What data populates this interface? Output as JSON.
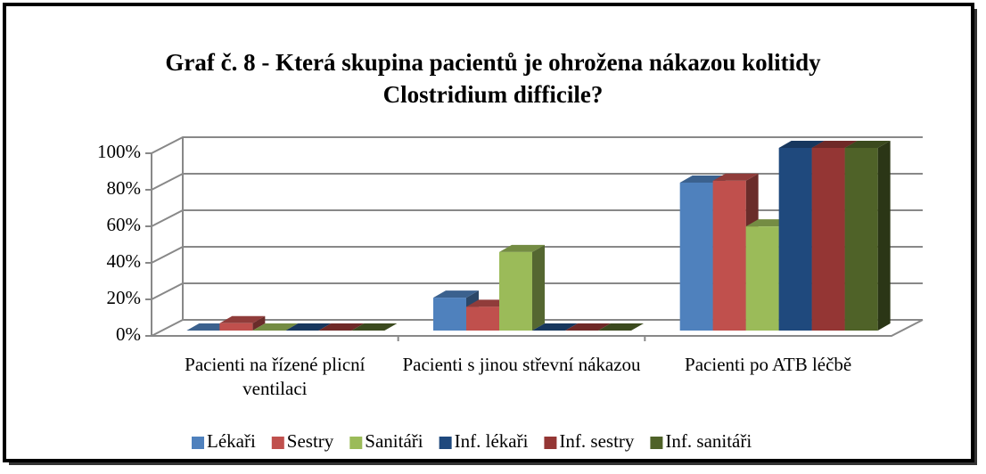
{
  "chart_data": {
    "type": "bar3d",
    "title": "Graf č. 8 - Která skupina pacientů je ohrožena nákazou kolitidy Clostridium difficile?",
    "categories": [
      "Pacienti na řízené plicní ventilaci",
      "Pacienti s jinou střevní nákazou",
      "Pacienti po ATB léčbě"
    ],
    "series": [
      {
        "name": "Lékaři",
        "color": "#4f81bd",
        "values": [
          0,
          18,
          81
        ]
      },
      {
        "name": "Sestry",
        "color": "#c0504d",
        "values": [
          4,
          13,
          82
        ]
      },
      {
        "name": "Sanitáři",
        "color": "#9bbb59",
        "values": [
          0,
          43,
          57
        ]
      },
      {
        "name": "Inf. lékaři",
        "color": "#1f497d",
        "values": [
          0,
          0,
          100
        ]
      },
      {
        "name": "Inf. sestry",
        "color": "#943634",
        "values": [
          0,
          0,
          100
        ]
      },
      {
        "name": "Inf. sanitáři",
        "color": "#4f6228",
        "values": [
          0,
          0,
          100
        ]
      }
    ],
    "ylim": [
      0,
      100
    ],
    "yticks": [
      {
        "value": 0,
        "label": "0%"
      },
      {
        "value": 20,
        "label": "20%"
      },
      {
        "value": 40,
        "label": "40%"
      },
      {
        "value": 60,
        "label": "60%"
      },
      {
        "value": 80,
        "label": "80%"
      },
      {
        "value": 100,
        "label": "100%"
      }
    ],
    "grid": true,
    "legend": "bottom"
  }
}
